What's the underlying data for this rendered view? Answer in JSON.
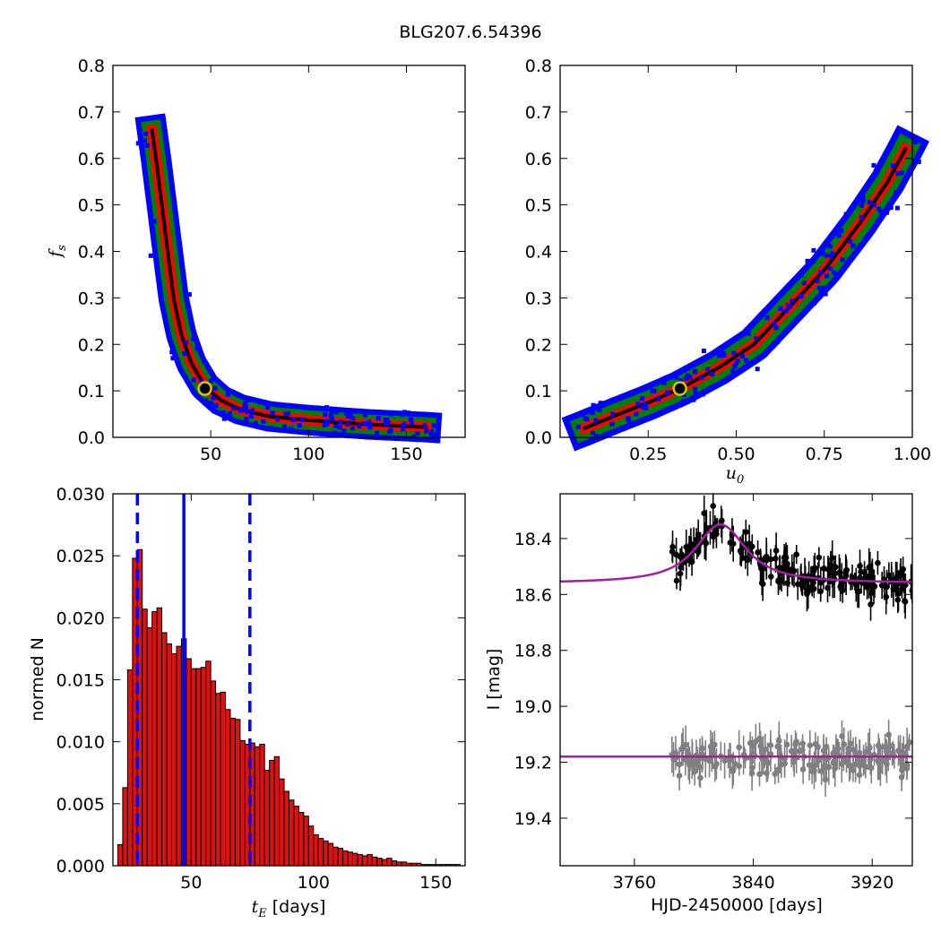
{
  "figure": {
    "title": "BLG207.6.54396"
  },
  "chart_data": [
    {
      "id": "fs_vs_tE",
      "type": "heatmap",
      "xlabel": "",
      "ylabel": "f_s",
      "xlim": [
        0,
        180
      ],
      "ylim": [
        0.0,
        0.8
      ],
      "xticks": [
        50,
        100,
        150
      ],
      "xtick_labels": [
        "50",
        "100",
        "150"
      ],
      "yticks": [
        0.0,
        0.1,
        0.2,
        0.3,
        0.4,
        0.5,
        0.6,
        0.7,
        0.8
      ],
      "ytick_labels": [
        "0.0",
        "0.1",
        "0.2",
        "0.3",
        "0.4",
        "0.5",
        "0.6",
        "0.7",
        "0.8"
      ],
      "levels_colors": [
        "#0000ff",
        "#008000",
        "#ff0000",
        "#000000"
      ],
      "ridge": [
        [
          20,
          0.66
        ],
        [
          22,
          0.6
        ],
        [
          25,
          0.5
        ],
        [
          28,
          0.4
        ],
        [
          31,
          0.3
        ],
        [
          35,
          0.22
        ],
        [
          40,
          0.16
        ],
        [
          47,
          0.11
        ],
        [
          55,
          0.08
        ],
        [
          65,
          0.06
        ],
        [
          80,
          0.045
        ],
        [
          100,
          0.037
        ],
        [
          130,
          0.028
        ],
        [
          160,
          0.022
        ]
      ],
      "best_fit": {
        "x": 47,
        "y": 0.105
      }
    },
    {
      "id": "fs_vs_u0",
      "type": "heatmap",
      "xlabel": "u_0",
      "ylabel": "",
      "xlim": [
        0.0,
        1.0
      ],
      "ylim": [
        0.0,
        0.8
      ],
      "xticks": [
        0.25,
        0.5,
        0.75,
        1.0
      ],
      "xtick_labels": [
        "0.25",
        "0.50",
        "0.75",
        "1.00"
      ],
      "yticks": [
        0.0,
        0.1,
        0.2,
        0.3,
        0.4,
        0.5,
        0.6,
        0.7,
        0.8
      ],
      "ytick_labels": [
        "0.0",
        "0.1",
        "0.2",
        "0.3",
        "0.4",
        "0.5",
        "0.6",
        "0.7",
        "0.8"
      ],
      "levels_colors": [
        "#0000ff",
        "#008000",
        "#ff0000",
        "#000000"
      ],
      "ridge": [
        [
          0.07,
          0.02
        ],
        [
          0.15,
          0.045
        ],
        [
          0.25,
          0.075
        ],
        [
          0.34,
          0.105
        ],
        [
          0.45,
          0.15
        ],
        [
          0.55,
          0.2
        ],
        [
          0.65,
          0.28
        ],
        [
          0.75,
          0.36
        ],
        [
          0.85,
          0.46
        ],
        [
          0.93,
          0.55
        ],
        [
          0.98,
          0.62
        ]
      ],
      "best_fit": {
        "x": 0.34,
        "y": 0.105
      }
    },
    {
      "id": "tE_histogram",
      "type": "bar",
      "xlabel": "t_E [days]",
      "ylabel": "normed N",
      "xlim": [
        18,
        162
      ],
      "ylim": [
        0.0,
        0.03
      ],
      "xticks": [
        50,
        100,
        150
      ],
      "xtick_labels": [
        "50",
        "100",
        "150"
      ],
      "yticks": [
        0.0,
        0.005,
        0.01,
        0.015,
        0.02,
        0.025,
        0.03
      ],
      "ytick_labels": [
        "0.000",
        "0.005",
        "0.010",
        "0.015",
        "0.020",
        "0.025",
        "0.030"
      ],
      "bin_width": 2,
      "bin_start": 20,
      "values": [
        0.0017,
        0.0063,
        0.0158,
        0.0248,
        0.0255,
        0.0207,
        0.0192,
        0.0205,
        0.0208,
        0.0188,
        0.0179,
        0.0171,
        0.0177,
        0.0183,
        0.0167,
        0.0159,
        0.0159,
        0.016,
        0.0165,
        0.0149,
        0.0139,
        0.014,
        0.0126,
        0.0119,
        0.0118,
        0.0101,
        0.0098,
        0.0099,
        0.0096,
        0.0098,
        0.0077,
        0.0085,
        0.0088,
        0.007,
        0.006,
        0.0053,
        0.0048,
        0.0043,
        0.004,
        0.0032,
        0.0025,
        0.0022,
        0.002,
        0.0018,
        0.0015,
        0.0014,
        0.0012,
        0.0011,
        0.001,
        0.0009,
        0.0008,
        0.0009,
        0.0007,
        0.0006,
        0.0005,
        0.0006,
        0.0004,
        0.0003,
        0.0003,
        0.0002,
        0.0002,
        0.0002,
        0.0001,
        0.0001,
        0.0001,
        0.0001,
        0.0001,
        0.0001,
        0.0001,
        0.0001
      ],
      "vlines": [
        {
          "x": 28,
          "style": "dashed",
          "color": "#0000ff"
        },
        {
          "x": 47,
          "style": "solid",
          "color": "#0000ff"
        },
        {
          "x": 74,
          "style": "dashed",
          "color": "#0000ff"
        }
      ]
    },
    {
      "id": "lightcurve",
      "type": "scatter",
      "xlabel": "HJD-2450000 [days]",
      "ylabel": "I [mag]",
      "xlim": [
        3710,
        3947
      ],
      "ylim": [
        19.57,
        18.24
      ],
      "y_inverted": true,
      "xticks": [
        3760,
        3840,
        3920
      ],
      "xtick_labels": [
        "3760",
        "3840",
        "3920"
      ],
      "yticks": [
        18.4,
        18.6,
        18.8,
        19.0,
        19.2,
        19.4
      ],
      "ytick_labels": [
        "18.4",
        "18.6",
        "18.8",
        "19.0",
        "19.2",
        "19.4"
      ],
      "series": [
        {
          "model": "upper",
          "color": "#000000",
          "x_range": [
            3785,
            3947
          ],
          "baseline": 18.56,
          "peak": 18.35,
          "t0": 3818,
          "width": 12,
          "scatter": 0.08,
          "error": 0.05
        },
        {
          "model": "residual",
          "color": "#808080",
          "x_range": [
            3785,
            3947
          ],
          "baseline": 19.18,
          "scatter": 0.08,
          "error": 0.05
        }
      ],
      "model_curves": [
        {
          "color": "#a020a0",
          "baseline": 18.56,
          "peak": 18.35,
          "t0": 3818,
          "width": 12
        },
        {
          "color": "#a020a0",
          "baseline": 19.18,
          "peak": 19.18,
          "t0": 3818,
          "width": 12
        }
      ]
    }
  ]
}
